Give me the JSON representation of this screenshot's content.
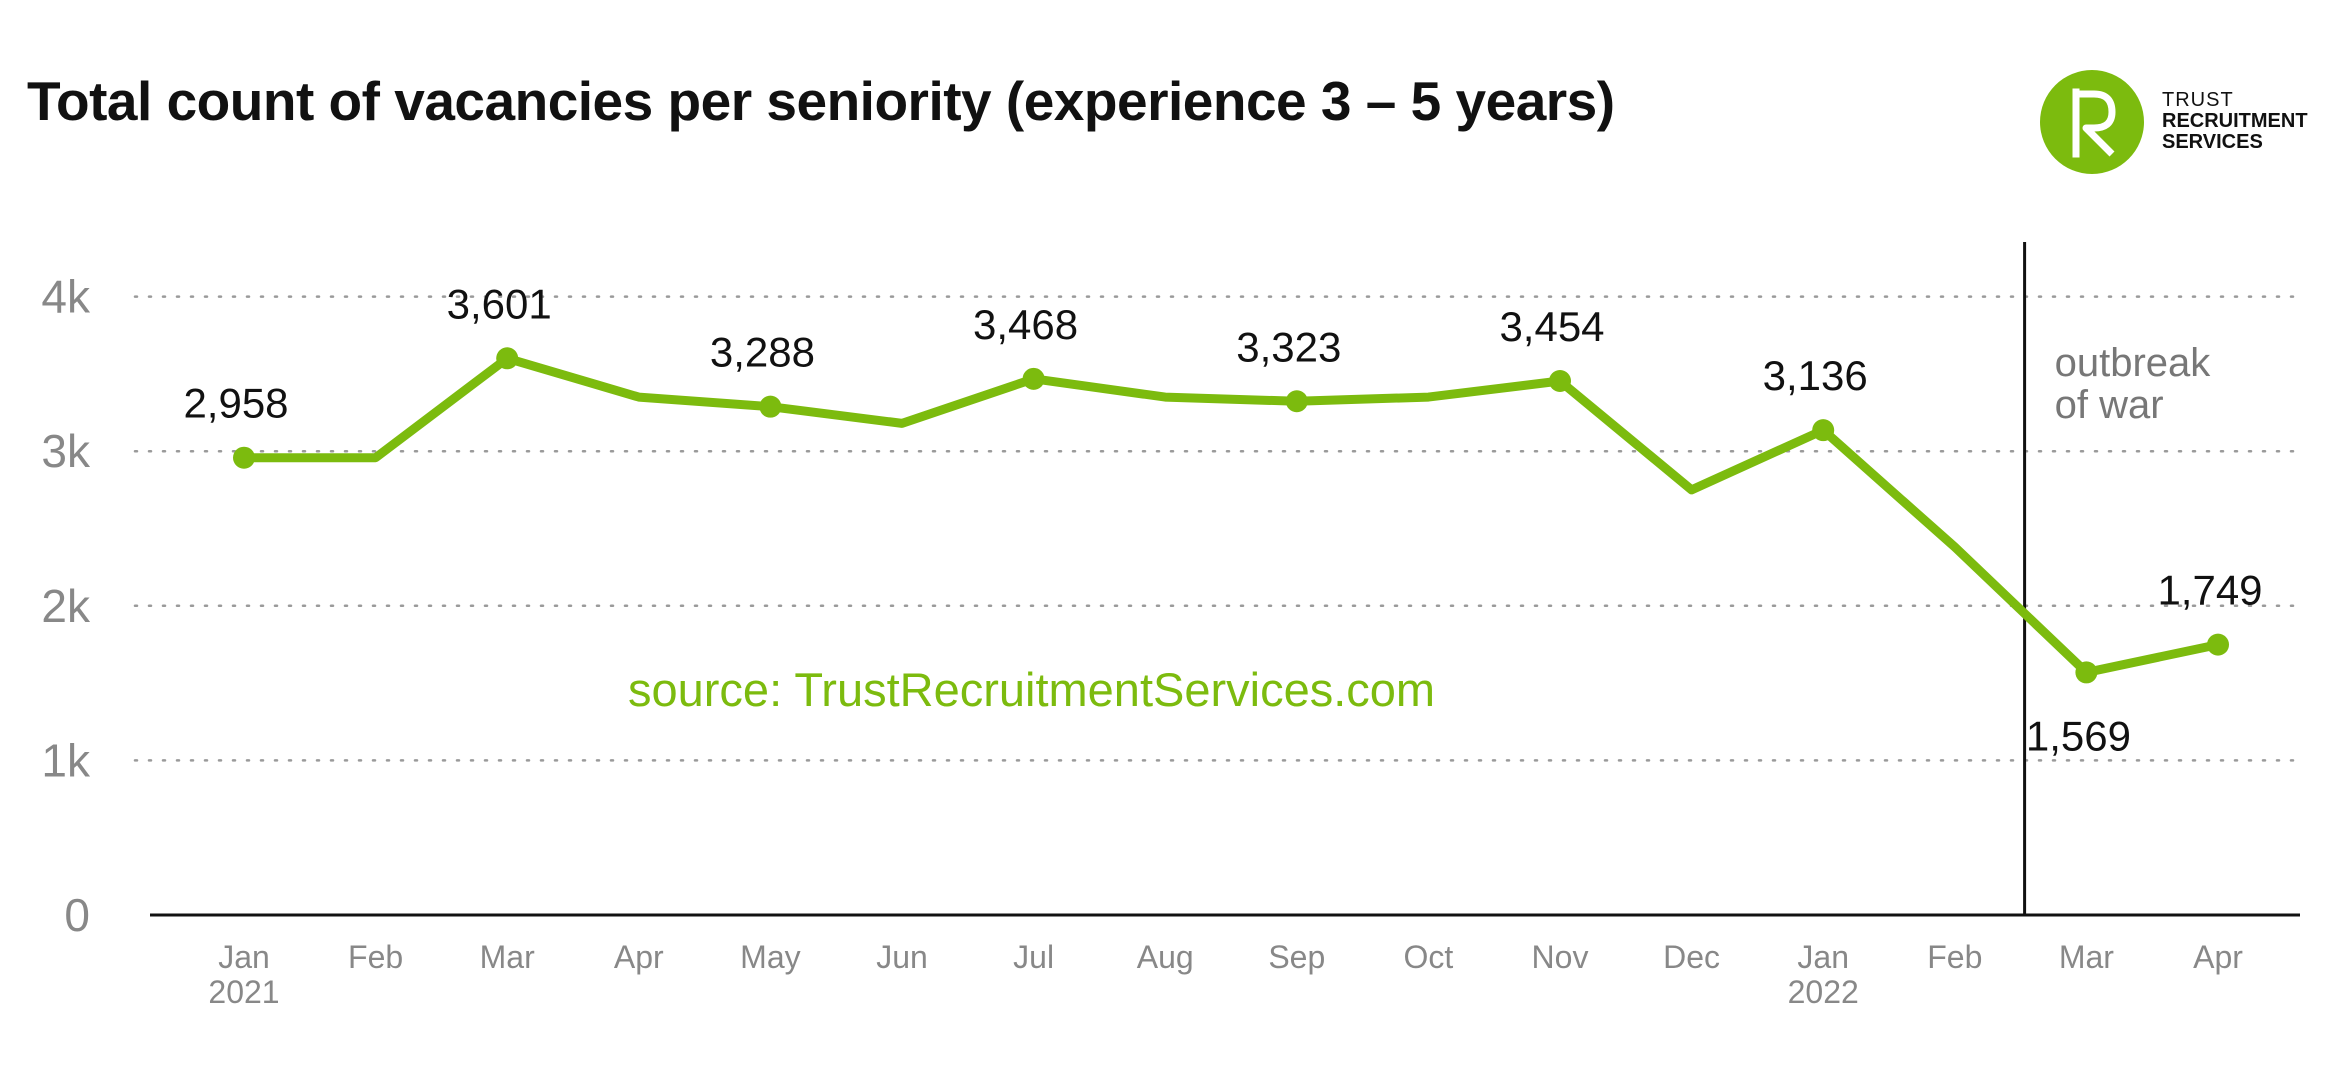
{
  "title": "Total count of vacancies per seniority (experience 3 – 5 years)",
  "logo": {
    "line1": "TRUST",
    "line2": "RECRUITMENT",
    "line3": "SERVICES",
    "mark": "R"
  },
  "source_note": "source: TrustRecruitmentServices.com",
  "colors": {
    "line": "#7cbb0e",
    "axis": "#111111",
    "grid": "#9a9a9a",
    "tick_text": "#888888"
  },
  "chart_data": {
    "type": "line",
    "title": "Total count of vacancies per seniority (experience 3 – 5 years)",
    "xlabel": "",
    "ylabel": "",
    "ylim": [
      0,
      4200
    ],
    "yticks": [
      {
        "value": 0,
        "label": "0"
      },
      {
        "value": 1000,
        "label": "1k"
      },
      {
        "value": 2000,
        "label": "2k"
      },
      {
        "value": 3000,
        "label": "3k"
      },
      {
        "value": 4000,
        "label": "4k"
      }
    ],
    "grid": true,
    "categories": [
      {
        "month": "Jan",
        "year": "2021"
      },
      {
        "month": "Feb",
        "year": ""
      },
      {
        "month": "Mar",
        "year": ""
      },
      {
        "month": "Apr",
        "year": ""
      },
      {
        "month": "May",
        "year": ""
      },
      {
        "month": "Jun",
        "year": ""
      },
      {
        "month": "Jul",
        "year": ""
      },
      {
        "month": "Aug",
        "year": ""
      },
      {
        "month": "Sep",
        "year": ""
      },
      {
        "month": "Oct",
        "year": ""
      },
      {
        "month": "Nov",
        "year": ""
      },
      {
        "month": "Dec",
        "year": ""
      },
      {
        "month": "Jan",
        "year": "2022"
      },
      {
        "month": "Feb",
        "year": ""
      },
      {
        "month": "Mar",
        "year": ""
      },
      {
        "month": "Apr",
        "year": ""
      }
    ],
    "values": [
      2958,
      2958,
      3601,
      3350,
      3288,
      3180,
      3468,
      3350,
      3323,
      3350,
      3454,
      2750,
      3136,
      2380,
      1569,
      1749
    ],
    "labeled_points": [
      {
        "index": 0,
        "label": "2,958",
        "position": "above"
      },
      {
        "index": 2,
        "label": "3,601",
        "position": "above"
      },
      {
        "index": 4,
        "label": "3,288",
        "position": "above"
      },
      {
        "index": 6,
        "label": "3,468",
        "position": "above"
      },
      {
        "index": 8,
        "label": "3,323",
        "position": "above"
      },
      {
        "index": 10,
        "label": "3,454",
        "position": "above"
      },
      {
        "index": 12,
        "label": "3,136",
        "position": "above"
      },
      {
        "index": 14,
        "label": "1,569",
        "position": "below"
      },
      {
        "index": 15,
        "label": "1,749",
        "position": "above"
      }
    ],
    "annotation": {
      "text_line1": "outbreak",
      "text_line2": "of war",
      "between": [
        13,
        14
      ]
    }
  }
}
